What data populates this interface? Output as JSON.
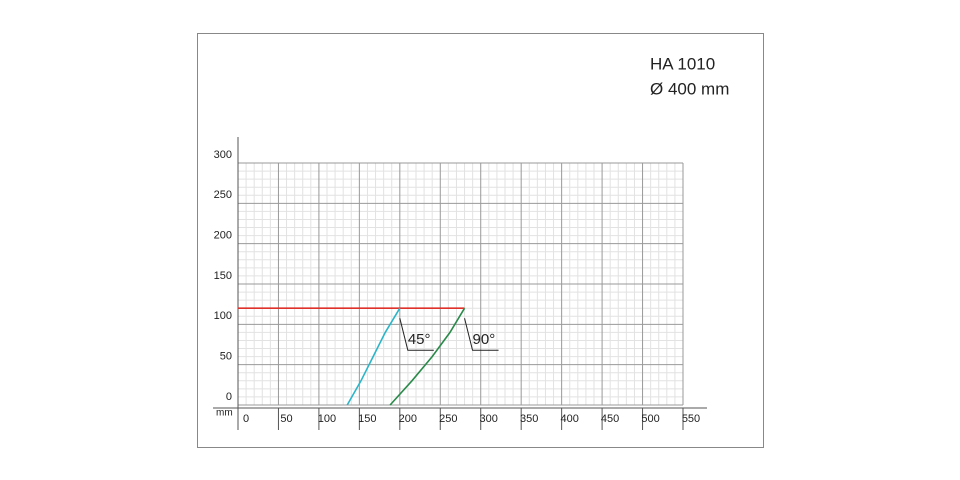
{
  "chart_data": {
    "type": "line",
    "title": "HA 1010",
    "subtitle": "Ø 400 mm",
    "x_label": "mm",
    "xlim": [
      0,
      550
    ],
    "xticks": [
      0,
      50,
      100,
      150,
      200,
      250,
      300,
      350,
      400,
      450,
      500,
      550
    ],
    "ylim": [
      0,
      300
    ],
    "yticks": [
      0,
      50,
      100,
      150,
      200,
      250,
      300
    ],
    "grid": true,
    "series": [
      {
        "color": "#e0302a",
        "x": [
          0,
          280
        ],
        "values": [
          120,
          120
        ]
      },
      {
        "name": "45°",
        "color": "#2bb5c8",
        "x": [
          135,
          152,
          167,
          182,
          200
        ],
        "values": [
          0,
          30,
          60,
          90,
          120
        ]
      },
      {
        "name": "90°",
        "color": "#2a8a4a",
        "x": [
          188,
          215,
          240,
          262,
          280
        ],
        "values": [
          0,
          30,
          60,
          90,
          120
        ]
      }
    ]
  }
}
